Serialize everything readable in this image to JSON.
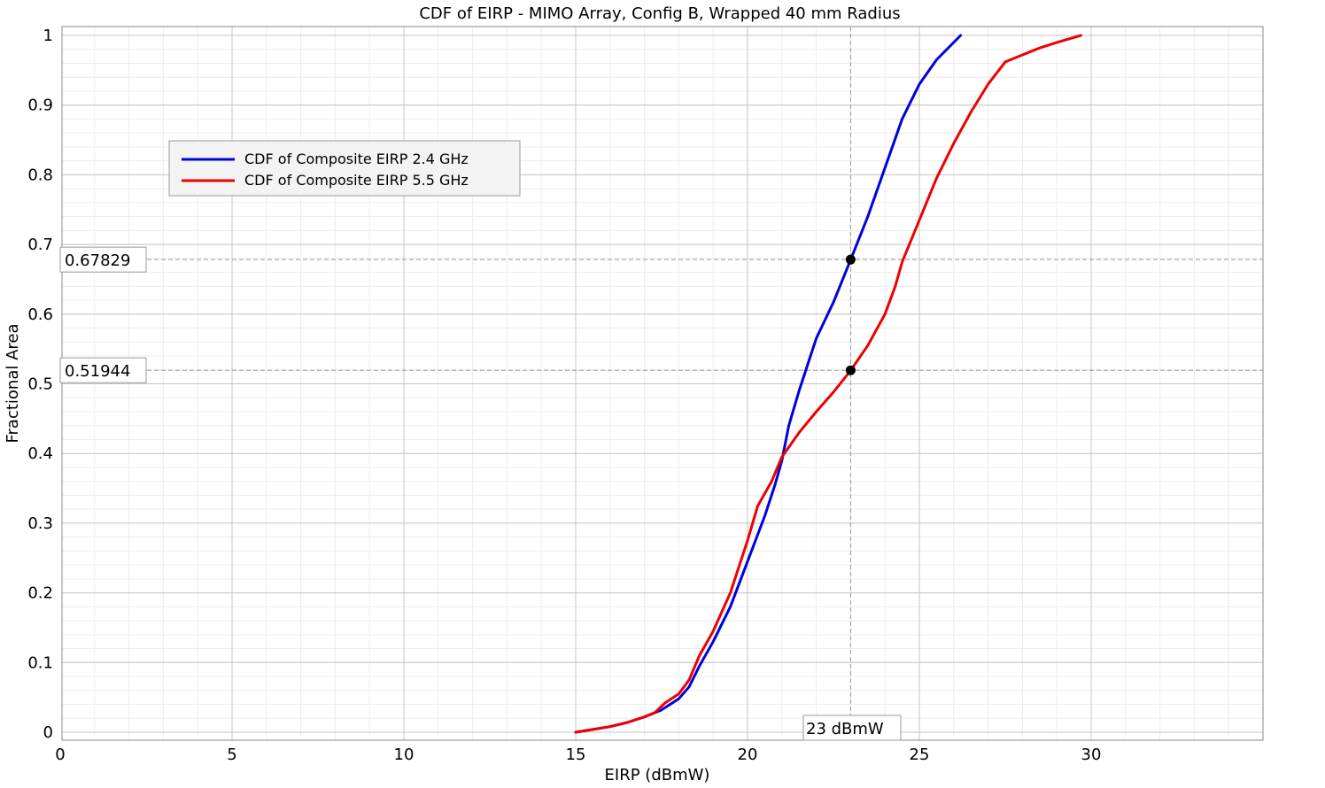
{
  "chart_data": {
    "type": "line",
    "title": "CDF of EIRP - MIMO Array, Config B, Wrapped 40 mm Radius",
    "xlabel": "EIRP (dBmW)",
    "ylabel": "Fractional Area",
    "xlim": [
      0,
      35
    ],
    "ylim": [
      0,
      1.01
    ],
    "x_ticks": [
      "0",
      "5",
      "10",
      "15",
      "20",
      "25",
      "30"
    ],
    "y_ticks": [
      "0",
      "0.1",
      "0.2",
      "0.3",
      "0.4",
      "0.5",
      "0.6",
      "0.7",
      "0.8",
      "0.9",
      "1"
    ],
    "grid": true,
    "legend_position": "upper-left",
    "series": [
      {
        "name": "CDF of Composite EIRP 2.4 GHz",
        "color": "#0000dd",
        "points": [
          [
            15.0,
            0.0
          ],
          [
            15.5,
            0.004
          ],
          [
            16.0,
            0.008
          ],
          [
            16.5,
            0.014
          ],
          [
            17.0,
            0.022
          ],
          [
            17.5,
            0.032
          ],
          [
            18.0,
            0.048
          ],
          [
            18.3,
            0.065
          ],
          [
            18.6,
            0.095
          ],
          [
            19.0,
            0.13
          ],
          [
            19.5,
            0.18
          ],
          [
            20.0,
            0.245
          ],
          [
            20.5,
            0.31
          ],
          [
            20.8,
            0.355
          ],
          [
            21.0,
            0.39
          ],
          [
            21.2,
            0.44
          ],
          [
            21.5,
            0.49
          ],
          [
            21.8,
            0.535
          ],
          [
            22.0,
            0.565
          ],
          [
            22.5,
            0.617
          ],
          [
            23.0,
            0.678
          ],
          [
            23.5,
            0.74
          ],
          [
            24.0,
            0.81
          ],
          [
            24.5,
            0.88
          ],
          [
            25.0,
            0.93
          ],
          [
            25.5,
            0.965
          ],
          [
            26.2,
            1.0
          ]
        ]
      },
      {
        "name": "CDF of Composite EIRP 5.5 GHz",
        "color": "#ee0000",
        "points": [
          [
            15.0,
            0.0
          ],
          [
            15.5,
            0.004
          ],
          [
            16.0,
            0.008
          ],
          [
            16.5,
            0.014
          ],
          [
            17.0,
            0.022
          ],
          [
            17.3,
            0.028
          ],
          [
            17.6,
            0.042
          ],
          [
            18.0,
            0.055
          ],
          [
            18.3,
            0.075
          ],
          [
            18.6,
            0.11
          ],
          [
            19.0,
            0.145
          ],
          [
            19.5,
            0.2
          ],
          [
            19.8,
            0.245
          ],
          [
            20.0,
            0.275
          ],
          [
            20.3,
            0.325
          ],
          [
            20.7,
            0.36
          ],
          [
            21.0,
            0.395
          ],
          [
            21.5,
            0.43
          ],
          [
            22.0,
            0.46
          ],
          [
            22.5,
            0.488
          ],
          [
            23.0,
            0.519
          ],
          [
            23.5,
            0.555
          ],
          [
            24.0,
            0.6
          ],
          [
            24.3,
            0.64
          ],
          [
            24.5,
            0.675
          ],
          [
            25.0,
            0.735
          ],
          [
            25.5,
            0.795
          ],
          [
            26.0,
            0.845
          ],
          [
            26.5,
            0.89
          ],
          [
            27.0,
            0.93
          ],
          [
            27.5,
            0.962
          ],
          [
            28.0,
            0.972
          ],
          [
            28.5,
            0.982
          ],
          [
            29.0,
            0.99
          ],
          [
            29.7,
            1.0
          ]
        ]
      }
    ],
    "markers": [
      {
        "x": 23.0,
        "y": 0.67829,
        "label": "0.67829"
      },
      {
        "x": 23.0,
        "y": 0.51944,
        "label": "0.51944"
      }
    ],
    "x_marker_label": "23 dBmW"
  }
}
